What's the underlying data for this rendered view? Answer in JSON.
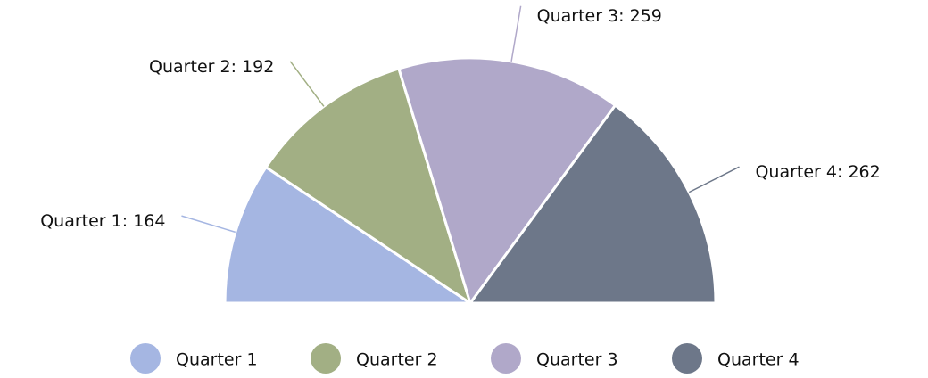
{
  "chart_data": {
    "type": "pie",
    "half": true,
    "categories": [
      "Quarter 1",
      "Quarter 2",
      "Quarter 3",
      "Quarter 4"
    ],
    "values": [
      164,
      192,
      259,
      262
    ],
    "colors": [
      "#a5b6e2",
      "#a2af84",
      "#b0a8c9",
      "#6d7789"
    ],
    "legend": "bottom"
  }
}
